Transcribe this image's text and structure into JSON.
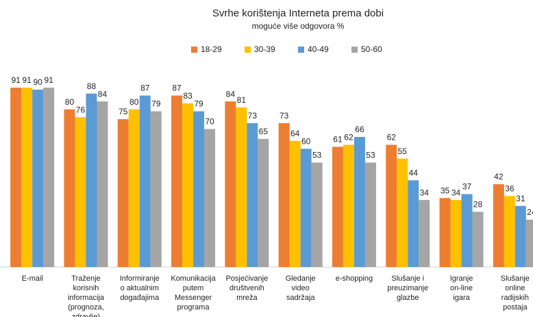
{
  "chart_data": {
    "type": "bar",
    "title": "Svrhe korištenja Interneta prema dobi",
    "subtitle": "moguće više odgovora %",
    "categories": [
      "E-mail",
      "Traženje korisnih informacija (prognoza, zdravlje)",
      "Informiranje o aktualnim događajima",
      "Komunikacija putem Messenger programa",
      "Posjećivanje društvenih mreža",
      "Gledanje video sadržaja",
      "e-shopping",
      "Slušanje i preuzimanje glazbe",
      "Igranje on-line igara",
      "Slušanje online radijskih postaja"
    ],
    "series": [
      {
        "name": "18-29",
        "color": "#ed7d31",
        "values": [
          91,
          80,
          75,
          87,
          84,
          73,
          61,
          62,
          35,
          42
        ]
      },
      {
        "name": "30-39",
        "color": "#ffc000",
        "values": [
          91,
          76,
          80,
          83,
          81,
          64,
          62,
          55,
          34,
          36
        ]
      },
      {
        "name": "40-49",
        "color": "#5b9bd5",
        "values": [
          90,
          88,
          87,
          79,
          73,
          60,
          66,
          44,
          37,
          31
        ]
      },
      {
        "name": "50-60",
        "color": "#a5a5a5",
        "values": [
          91,
          84,
          79,
          70,
          65,
          53,
          53,
          34,
          28,
          24
        ]
      }
    ],
    "ylim": [
      0,
      100
    ],
    "legend": "top"
  }
}
